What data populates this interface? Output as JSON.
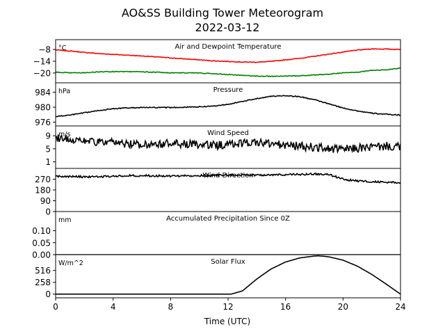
{
  "figure": {
    "title_line1": "AO&SS Building Tower Meteorogram",
    "title_line2": "2022-03-12",
    "xlabel": "Time (UTC)"
  },
  "chart_data": {
    "type": "line",
    "x_axis": {
      "label": "Time (UTC)",
      "range": [
        0,
        24
      ],
      "ticks": [
        0,
        4,
        8,
        12,
        16,
        20,
        24
      ]
    },
    "panels": [
      {
        "id": "temp",
        "title": "Air and Dewpoint Temperature",
        "unit": "°C",
        "ylim": [
          -25,
          -3
        ],
        "yticks": [
          -8,
          -14,
          -20
        ],
        "ytick_labels": [
          "−8",
          "−14",
          "−20"
        ],
        "series": [
          {
            "color": "#ff0000",
            "x": [
              0,
              1,
              2,
              3,
              4,
              5,
              6,
              7,
              8,
              9,
              10,
              11,
              12,
              13,
              14,
              15,
              16,
              17,
              18,
              19,
              20,
              21,
              22,
              23,
              24
            ],
            "y": [
              -8.2,
              -8.8,
              -9.5,
              -10.1,
              -10.5,
              -10.9,
              -11.3,
              -11.8,
              -12.3,
              -12.8,
              -13.3,
              -13.8,
              -14.1,
              -14.4,
              -14.5,
              -14.1,
              -13.3,
              -12.5,
              -11.5,
              -10.4,
              -9.3,
              -8.3,
              -7.7,
              -7.8,
              -8.0
            ]
          },
          {
            "color": "#008000",
            "x": [
              0,
              1,
              2,
              3,
              4,
              5,
              6,
              7,
              8,
              9,
              10,
              11,
              12,
              13,
              14,
              15,
              16,
              17,
              18,
              19,
              20,
              21,
              22,
              23,
              24
            ],
            "y": [
              -19.6,
              -19.9,
              -19.9,
              -19.4,
              -19.3,
              -19.3,
              -19.4,
              -19.6,
              -19.9,
              -19.9,
              -20.0,
              -20.4,
              -20.8,
              -21.2,
              -21.6,
              -21.7,
              -21.6,
              -21.4,
              -21.0,
              -20.6,
              -19.9,
              -19.6,
              -18.7,
              -18.4,
              -17.5
            ]
          }
        ]
      },
      {
        "id": "pressure",
        "title": "Pressure",
        "unit": "hPa",
        "ylim": [
          975,
          986.5
        ],
        "yticks": [
          976,
          980,
          984
        ],
        "ytick_labels": [
          "976",
          "980",
          "984"
        ],
        "series": [
          {
            "color": "#000000",
            "x": [
              0,
              1,
              2,
              3,
              4,
              5,
              6,
              7,
              8,
              9,
              10,
              11,
              12,
              13,
              14,
              15,
              16,
              17,
              18,
              19,
              20,
              21,
              22,
              23,
              24
            ],
            "y": [
              977.5,
              977.9,
              978.5,
              979.1,
              979.6,
              979.8,
              979.9,
              979.9,
              979.9,
              980.0,
              980.1,
              980.3,
              980.8,
              981.5,
              982.3,
              982.9,
              983.1,
              982.8,
              982.0,
              980.9,
              979.8,
              979.0,
              978.4,
              978.1,
              977.9
            ]
          }
        ]
      },
      {
        "id": "wind_speed",
        "title": "Wind Speed",
        "unit": "m/s",
        "ylim": [
          -1,
          12
        ],
        "yticks": [
          1,
          5,
          9
        ],
        "ytick_labels": [
          "1",
          "5",
          "9"
        ],
        "series": [
          {
            "color": "#000000",
            "x": [
              0,
              1,
              2,
              3,
              4,
              5,
              6,
              7,
              8,
              9,
              10,
              11,
              12,
              13,
              14,
              15,
              16,
              17,
              18,
              19,
              20,
              21,
              22,
              23,
              24
            ],
            "y": [
              8.5,
              8.0,
              7.5,
              7.0,
              6.8,
              6.5,
              6.3,
              6.5,
              6.6,
              6.4,
              6.2,
              6.0,
              6.3,
              6.8,
              7.0,
              6.5,
              6.0,
              5.8,
              5.5,
              5.0,
              4.8,
              5.2,
              5.5,
              5.8,
              5.5
            ]
          }
        ]
      },
      {
        "id": "wind_direction",
        "title": "Wind Direction",
        "unit": "",
        "ylim": [
          0,
          360
        ],
        "yticks": [
          0,
          90,
          180,
          270
        ],
        "ytick_labels": [
          "0",
          "90",
          "180",
          "270"
        ],
        "series": [
          {
            "color": "#000000",
            "x": [
              0,
              1,
              2,
              3,
              4,
              5,
              6,
              7,
              8,
              9,
              10,
              11,
              12,
              13,
              14,
              15,
              16,
              17,
              18,
              19,
              20,
              21,
              22,
              23,
              24
            ],
            "y": [
              295,
              292,
              290,
              290,
              295,
              300,
              300,
              298,
              296,
              298,
              300,
              302,
              304,
              306,
              305,
              306,
              308,
              310,
              312,
              310,
              270,
              255,
              250,
              245,
              240
            ]
          }
        ]
      },
      {
        "id": "precip",
        "title": "Accumulated Precipitation Since 0Z",
        "unit": "mm",
        "ylim": [
          0,
          0.18
        ],
        "yticks": [
          0.0,
          0.05,
          0.1
        ],
        "ytick_labels": [
          "0.00",
          "0.05",
          "0.10"
        ],
        "series": [
          {
            "color": "#000000",
            "x": [
              0,
              24
            ],
            "y": [
              0,
              0
            ]
          }
        ]
      },
      {
        "id": "solar",
        "title": "Solar Flux",
        "unit": "W/m^2",
        "ylim": [
          -80,
          860
        ],
        "yticks": [
          0,
          258,
          516
        ],
        "ytick_labels": [
          "0",
          "258",
          "516"
        ],
        "series": [
          {
            "color": "#000000",
            "x": [
              0,
              12.2,
              13,
              14,
              15,
              16,
              17,
              18,
              18.3,
              19,
              20,
              21,
              22,
              23,
              24
            ],
            "y": [
              0,
              0,
              70,
              330,
              550,
              700,
              790,
              830,
              835,
              815,
              740,
              610,
              430,
              220,
              0
            ]
          }
        ]
      }
    ]
  }
}
